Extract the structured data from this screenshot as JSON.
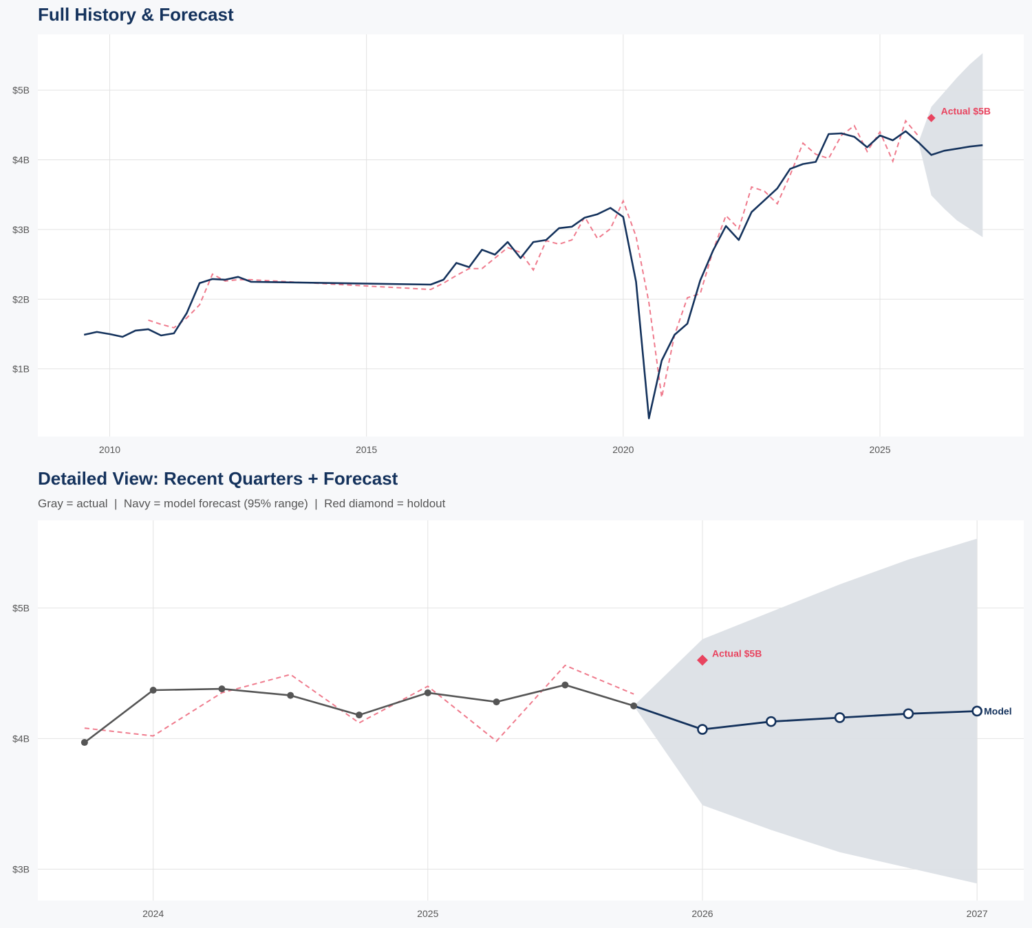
{
  "chart_data": [
    {
      "type": "line",
      "title": "Full History & Forecast",
      "xlim": [
        2008.6,
        2027.8
      ],
      "ylim": [
        0.03,
        5.8
      ],
      "x_ticks": [
        2010,
        2015,
        2020,
        2025
      ],
      "x_tick_labels": [
        "2010",
        "2015",
        "2020",
        "2025"
      ],
      "y_ticks": [
        1,
        2,
        3,
        4,
        5
      ],
      "y_tick_labels": [
        "$1B",
        "$2B",
        "$3B",
        "$4B",
        "$5B"
      ],
      "grid": true,
      "colors": {
        "actual": "#14325c",
        "fitted": "#ef7a8c",
        "band": "#dce0e6",
        "holdout": "#e8445f"
      },
      "actual": [
        [
          2009.5,
          1.49
        ],
        [
          2009.75,
          1.53
        ],
        [
          2010.0,
          1.5
        ],
        [
          2010.25,
          1.46
        ],
        [
          2010.5,
          1.55
        ],
        [
          2010.75,
          1.57
        ],
        [
          2011.0,
          1.48
        ],
        [
          2011.25,
          1.51
        ],
        [
          2011.5,
          1.8
        ],
        [
          2011.75,
          2.23
        ],
        [
          2012.0,
          2.29
        ],
        [
          2012.25,
          2.28
        ],
        [
          2012.5,
          2.32
        ],
        [
          2012.75,
          2.25
        ],
        [
          2016.25,
          2.21
        ],
        [
          2016.5,
          2.28
        ],
        [
          2016.75,
          2.52
        ],
        [
          2017.0,
          2.46
        ],
        [
          2017.25,
          2.71
        ],
        [
          2017.5,
          2.64
        ],
        [
          2017.75,
          2.82
        ],
        [
          2018.0,
          2.59
        ],
        [
          2018.25,
          2.82
        ],
        [
          2018.5,
          2.85
        ],
        [
          2018.75,
          3.02
        ],
        [
          2019.0,
          3.04
        ],
        [
          2019.25,
          3.17
        ],
        [
          2019.5,
          3.22
        ],
        [
          2019.75,
          3.31
        ],
        [
          2020.0,
          3.18
        ],
        [
          2020.25,
          2.25
        ],
        [
          2020.5,
          0.29
        ],
        [
          2020.75,
          1.12
        ],
        [
          2021.0,
          1.49
        ],
        [
          2021.25,
          1.65
        ],
        [
          2021.5,
          2.27
        ],
        [
          2021.75,
          2.7
        ],
        [
          2022.0,
          3.05
        ],
        [
          2022.25,
          2.85
        ],
        [
          2022.5,
          3.25
        ],
        [
          2022.75,
          3.42
        ],
        [
          2023.0,
          3.59
        ],
        [
          2023.25,
          3.87
        ],
        [
          2023.5,
          3.94
        ],
        [
          2023.75,
          3.97
        ],
        [
          2024.0,
          4.37
        ],
        [
          2024.25,
          4.38
        ],
        [
          2024.5,
          4.33
        ],
        [
          2024.75,
          4.18
        ],
        [
          2025.0,
          4.35
        ],
        [
          2025.25,
          4.28
        ],
        [
          2025.5,
          4.41
        ],
        [
          2025.75,
          4.25
        ]
      ],
      "fitted": [
        [
          2010.75,
          1.7
        ],
        [
          2011.0,
          1.64
        ],
        [
          2011.25,
          1.59
        ],
        [
          2011.5,
          1.73
        ],
        [
          2011.75,
          1.92
        ],
        [
          2012.0,
          2.36
        ],
        [
          2012.25,
          2.26
        ],
        [
          2012.5,
          2.28
        ],
        [
          2012.75,
          2.28
        ],
        [
          2016.25,
          2.14
        ],
        [
          2016.5,
          2.23
        ],
        [
          2016.75,
          2.34
        ],
        [
          2017.0,
          2.44
        ],
        [
          2017.25,
          2.44
        ],
        [
          2017.5,
          2.59
        ],
        [
          2017.75,
          2.74
        ],
        [
          2018.0,
          2.67
        ],
        [
          2018.25,
          2.42
        ],
        [
          2018.5,
          2.84
        ],
        [
          2018.75,
          2.79
        ],
        [
          2019.0,
          2.85
        ],
        [
          2019.25,
          3.18
        ],
        [
          2019.5,
          2.87
        ],
        [
          2019.75,
          3.01
        ],
        [
          2020.0,
          3.41
        ],
        [
          2020.25,
          2.9
        ],
        [
          2020.5,
          1.95
        ],
        [
          2020.75,
          0.59
        ],
        [
          2021.0,
          1.49
        ],
        [
          2021.25,
          2.02
        ],
        [
          2021.5,
          2.08
        ],
        [
          2021.75,
          2.7
        ],
        [
          2022.0,
          3.2
        ],
        [
          2022.25,
          3.01
        ],
        [
          2022.5,
          3.61
        ],
        [
          2022.75,
          3.55
        ],
        [
          2023.0,
          3.37
        ],
        [
          2023.25,
          3.78
        ],
        [
          2023.5,
          4.24
        ],
        [
          2023.75,
          4.08
        ],
        [
          2024.0,
          4.02
        ],
        [
          2024.25,
          4.35
        ],
        [
          2024.5,
          4.49
        ],
        [
          2024.75,
          4.12
        ],
        [
          2025.0,
          4.4
        ],
        [
          2025.25,
          3.98
        ],
        [
          2025.5,
          4.56
        ],
        [
          2025.75,
          4.34
        ]
      ],
      "forecast": [
        [
          2025.75,
          4.25
        ],
        [
          2026.0,
          4.07
        ],
        [
          2026.25,
          4.13
        ],
        [
          2026.5,
          4.16
        ],
        [
          2026.75,
          4.19
        ],
        [
          2027.0,
          4.21
        ]
      ],
      "band_upper": [
        [
          2025.75,
          4.25
        ],
        [
          2026.0,
          4.76
        ],
        [
          2026.25,
          4.97
        ],
        [
          2026.5,
          5.18
        ],
        [
          2026.75,
          5.37
        ],
        [
          2027.0,
          5.53
        ]
      ],
      "band_lower": [
        [
          2025.75,
          4.25
        ],
        [
          2026.0,
          3.49
        ],
        [
          2026.25,
          3.3
        ],
        [
          2026.5,
          3.13
        ],
        [
          2026.75,
          3.01
        ],
        [
          2027.0,
          2.89
        ]
      ],
      "holdout": {
        "x": 2026.0,
        "y": 4.6,
        "label": "Actual $5B"
      }
    },
    {
      "type": "line",
      "title": "Detailed View: Recent Quarters + Forecast",
      "subtitle": "Gray = actual  |  Navy = model forecast (95% range)  |  Red diamond = holdout",
      "xlim": [
        2023.58,
        2027.17
      ],
      "ylim": [
        2.76,
        5.67
      ],
      "x_ticks": [
        2024,
        2025,
        2026,
        2027
      ],
      "x_tick_labels": [
        "2024",
        "2025",
        "2026",
        "2027"
      ],
      "y_ticks": [
        3,
        4,
        5
      ],
      "y_tick_labels": [
        "$3B",
        "$4B",
        "$5B"
      ],
      "grid": true,
      "colors": {
        "actual": "#555555",
        "forecast": "#14325c",
        "fitted": "#ef7a8c",
        "band": "#dce0e6",
        "holdout": "#e8445f"
      },
      "actual": [
        [
          2023.75,
          3.97
        ],
        [
          2024.0,
          4.37
        ],
        [
          2024.25,
          4.38
        ],
        [
          2024.5,
          4.33
        ],
        [
          2024.75,
          4.18
        ],
        [
          2025.0,
          4.35
        ],
        [
          2025.25,
          4.28
        ],
        [
          2025.5,
          4.41
        ],
        [
          2025.75,
          4.25
        ]
      ],
      "fitted": [
        [
          2023.75,
          4.08
        ],
        [
          2024.0,
          4.02
        ],
        [
          2024.25,
          4.35
        ],
        [
          2024.5,
          4.49
        ],
        [
          2024.75,
          4.12
        ],
        [
          2025.0,
          4.4
        ],
        [
          2025.25,
          3.98
        ],
        [
          2025.5,
          4.56
        ],
        [
          2025.75,
          4.34
        ]
      ],
      "forecast": [
        [
          2025.75,
          4.25
        ],
        [
          2026.0,
          4.07
        ],
        [
          2026.25,
          4.13
        ],
        [
          2026.5,
          4.16
        ],
        [
          2026.75,
          4.19
        ],
        [
          2027.0,
          4.21
        ]
      ],
      "forecast_label": "Model",
      "band_upper": [
        [
          2025.75,
          4.25
        ],
        [
          2026.0,
          4.76
        ],
        [
          2026.25,
          4.97
        ],
        [
          2026.5,
          5.18
        ],
        [
          2026.75,
          5.37
        ],
        [
          2027.0,
          5.53
        ]
      ],
      "band_lower": [
        [
          2025.75,
          4.25
        ],
        [
          2026.0,
          3.49
        ],
        [
          2026.25,
          3.3
        ],
        [
          2026.5,
          3.13
        ],
        [
          2026.75,
          3.01
        ],
        [
          2027.0,
          2.89
        ]
      ],
      "holdout": {
        "x": 2026.0,
        "y": 4.6,
        "label": "Actual $5B"
      }
    }
  ]
}
